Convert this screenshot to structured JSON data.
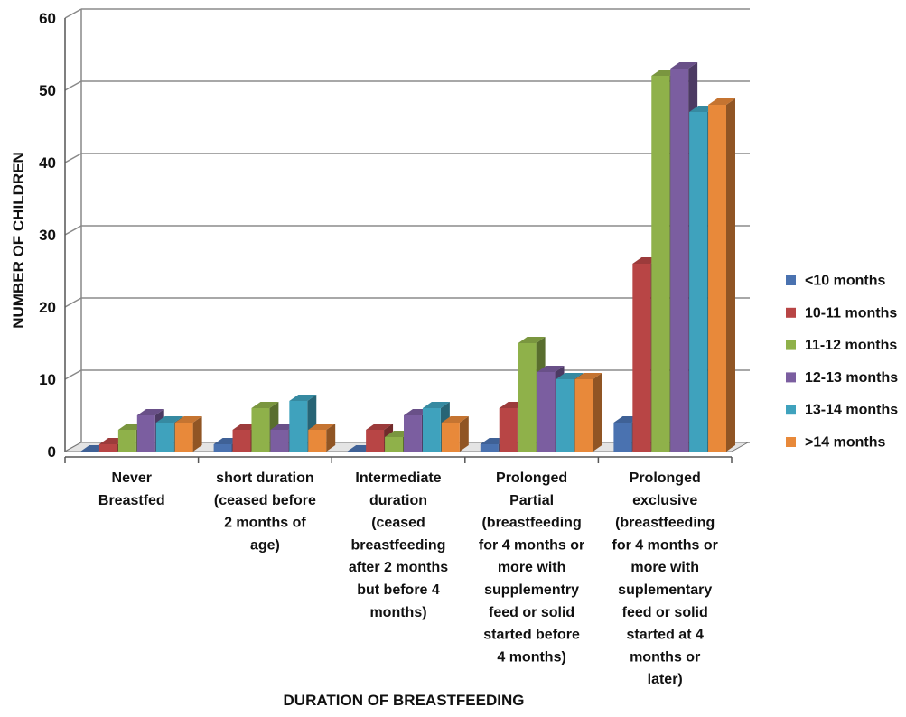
{
  "chart_data": {
    "type": "bar",
    "title": "",
    "xlabel": "DURATION OF BREASTFEEDING",
    "ylabel": "NUMBER OF CHILDREN",
    "ylim": [
      0,
      60
    ],
    "yticks": [
      "0",
      "10",
      "20",
      "30",
      "40",
      "50",
      "60"
    ],
    "grid": true,
    "legend_position": "right",
    "categories": [
      "Never Breastfed",
      "short duration (ceased before 2 months of age)",
      "Intermediate duration (ceased breastfeeding after 2 months but before 4 months)",
      "Prolonged Partial (breastfeeding for 4 months or more with supplementry feed or solid started before 4 months)",
      "Prolonged exclusive (breastfeeding for 4 months or more with suplementary feed or solid started at 4 months or later)"
    ],
    "category_lines": [
      [
        "Never",
        "Breastfed"
      ],
      [
        "short duration",
        "(ceased before",
        "2 months of",
        "age)"
      ],
      [
        "Intermediate",
        "duration",
        "(ceased",
        "breastfeeding",
        "after 2 months",
        "but before 4",
        "months)"
      ],
      [
        "Prolonged",
        "Partial",
        "(breastfeeding",
        "for 4 months or",
        "more with",
        "supplementry",
        "feed or solid",
        "started before",
        "4 months)"
      ],
      [
        "Prolonged",
        "exclusive",
        "(breastfeeding",
        "for 4 months or",
        "more with",
        "suplementary",
        "feed or solid",
        "started at 4",
        "months or",
        "later)"
      ]
    ],
    "series": [
      {
        "name": "<10 months",
        "color": "#4a72b0",
        "values": [
          0,
          1,
          0,
          1,
          4
        ]
      },
      {
        "name": "10-11 months",
        "color": "#b84545",
        "values": [
          1,
          3,
          3,
          6,
          26
        ]
      },
      {
        "name": "11-12 months",
        "color": "#8fb14a",
        "values": [
          3,
          6,
          2,
          15,
          52
        ]
      },
      {
        "name": "12-13 months",
        "color": "#7b5ea0",
        "values": [
          5,
          3,
          5,
          11,
          53
        ]
      },
      {
        "name": "13-14 months",
        "color": "#3fa2bd",
        "values": [
          4,
          7,
          6,
          10,
          47
        ]
      },
      {
        "name": ">14 months",
        "color": "#e8893a",
        "values": [
          4,
          3,
          4,
          10,
          48
        ]
      }
    ]
  }
}
